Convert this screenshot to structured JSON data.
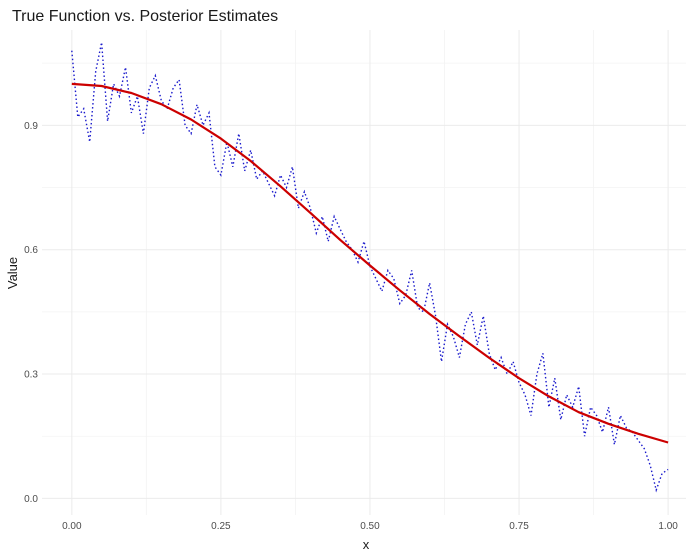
{
  "chart_data": {
    "type": "line",
    "title": "True Function vs. Posterior Estimates",
    "xlabel": "x",
    "ylabel": "Value",
    "xlim": [
      -0.05,
      1.03
    ],
    "ylim": [
      -0.04,
      1.13
    ],
    "x_ticks": [
      0.0,
      0.25,
      0.5,
      0.75,
      1.0
    ],
    "x_tick_labels": [
      "0.00",
      "0.25",
      "0.50",
      "0.75",
      "1.00"
    ],
    "y_ticks": [
      0.0,
      0.3,
      0.6,
      0.9
    ],
    "y_tick_labels": [
      "0.0",
      "0.3",
      "0.6",
      "0.9"
    ],
    "grid": true,
    "legend": "none",
    "series": [
      {
        "role": "true-function",
        "style": "solid",
        "color": "#cc0000",
        "x": [
          0.0,
          0.05,
          0.1,
          0.15,
          0.2,
          0.25,
          0.3,
          0.35,
          0.4,
          0.45,
          0.5,
          0.55,
          0.6,
          0.65,
          0.7,
          0.75,
          0.8,
          0.85,
          0.9,
          0.95,
          1.0
        ],
        "y": [
          1.0,
          0.995,
          0.978,
          0.951,
          0.914,
          0.868,
          0.814,
          0.753,
          0.689,
          0.624,
          0.562,
          0.502,
          0.445,
          0.391,
          0.339,
          0.29,
          0.246,
          0.208,
          0.18,
          0.156,
          0.135
        ]
      },
      {
        "role": "posterior-estimates",
        "style": "dotted",
        "color": "#1a1acc",
        "x": [
          0.0,
          0.01,
          0.02,
          0.03,
          0.04,
          0.05,
          0.06,
          0.07,
          0.08,
          0.09,
          0.1,
          0.11,
          0.12,
          0.13,
          0.14,
          0.15,
          0.16,
          0.17,
          0.18,
          0.19,
          0.2,
          0.21,
          0.22,
          0.23,
          0.24,
          0.25,
          0.26,
          0.27,
          0.28,
          0.29,
          0.3,
          0.31,
          0.32,
          0.33,
          0.34,
          0.35,
          0.36,
          0.37,
          0.38,
          0.39,
          0.4,
          0.41,
          0.42,
          0.43,
          0.44,
          0.45,
          0.46,
          0.47,
          0.48,
          0.49,
          0.5,
          0.51,
          0.52,
          0.53,
          0.54,
          0.55,
          0.56,
          0.57,
          0.58,
          0.59,
          0.6,
          0.61,
          0.62,
          0.63,
          0.64,
          0.65,
          0.66,
          0.67,
          0.68,
          0.69,
          0.7,
          0.71,
          0.72,
          0.73,
          0.74,
          0.75,
          0.76,
          0.77,
          0.78,
          0.79,
          0.8,
          0.81,
          0.82,
          0.83,
          0.84,
          0.85,
          0.86,
          0.87,
          0.88,
          0.89,
          0.9,
          0.91,
          0.92,
          0.93,
          0.94,
          0.95,
          0.96,
          0.97,
          0.98,
          0.99,
          1.0
        ],
        "y": [
          1.08,
          0.92,
          0.94,
          0.86,
          1.03,
          1.1,
          0.91,
          1.0,
          0.97,
          1.04,
          0.93,
          0.97,
          0.88,
          0.99,
          1.02,
          0.96,
          0.94,
          0.99,
          1.01,
          0.9,
          0.88,
          0.95,
          0.9,
          0.93,
          0.8,
          0.78,
          0.86,
          0.8,
          0.88,
          0.79,
          0.84,
          0.77,
          0.79,
          0.76,
          0.73,
          0.78,
          0.75,
          0.8,
          0.7,
          0.74,
          0.7,
          0.64,
          0.68,
          0.62,
          0.68,
          0.65,
          0.62,
          0.6,
          0.57,
          0.62,
          0.56,
          0.53,
          0.5,
          0.55,
          0.53,
          0.47,
          0.49,
          0.55,
          0.46,
          0.45,
          0.52,
          0.44,
          0.33,
          0.42,
          0.39,
          0.34,
          0.42,
          0.45,
          0.37,
          0.44,
          0.35,
          0.31,
          0.34,
          0.3,
          0.33,
          0.28,
          0.25,
          0.2,
          0.3,
          0.35,
          0.22,
          0.29,
          0.19,
          0.25,
          0.22,
          0.27,
          0.15,
          0.22,
          0.2,
          0.16,
          0.22,
          0.13,
          0.2,
          0.17,
          0.16,
          0.14,
          0.12,
          0.08,
          0.02,
          0.06,
          0.07
        ]
      }
    ]
  }
}
